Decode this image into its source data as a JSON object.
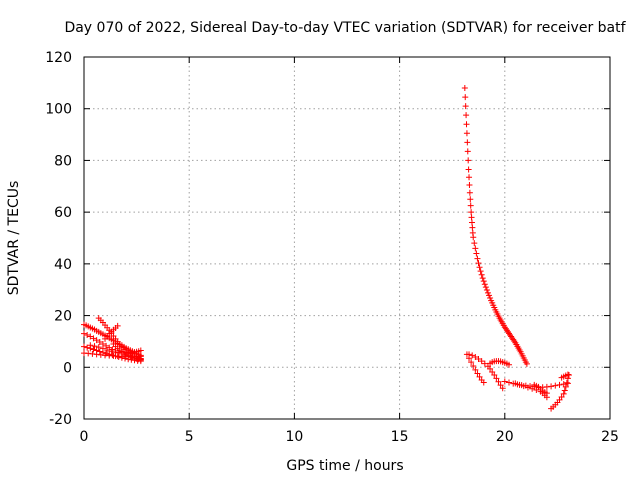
{
  "chart_data": {
    "type": "scatter",
    "title": "Day 070 of 2022, Sidereal Day-to-day VTEC variation (SDTVAR) for receiver batf",
    "xlabel": "GPS time / hours",
    "ylabel": "SDTVAR / TECUs",
    "xlim": [
      0,
      25
    ],
    "ylim": [
      -20,
      120
    ],
    "xticks": [
      0,
      5,
      10,
      15,
      20,
      25
    ],
    "yticks": [
      -20,
      0,
      20,
      40,
      60,
      80,
      100,
      120
    ],
    "xtick_labels": [
      "0",
      "5",
      "10",
      "15",
      "20",
      "25"
    ],
    "ytick_labels": [
      "-20",
      "0",
      "20",
      "40",
      "60",
      "80",
      "100",
      "120"
    ],
    "grid": true,
    "marker": "+",
    "color": "#ff0000",
    "series": [
      {
        "name": "SDTVAR",
        "points": [
          [
            0.0,
            16.5
          ],
          [
            0.1,
            16.2
          ],
          [
            0.2,
            15.8
          ],
          [
            0.3,
            15.4
          ],
          [
            0.4,
            15.0
          ],
          [
            0.5,
            14.6
          ],
          [
            0.6,
            14.1
          ],
          [
            0.7,
            13.7
          ],
          [
            0.8,
            13.2
          ],
          [
            0.9,
            12.8
          ],
          [
            1.0,
            12.3
          ],
          [
            1.1,
            11.8
          ],
          [
            1.2,
            11.3
          ],
          [
            1.3,
            10.8
          ],
          [
            1.4,
            10.3
          ],
          [
            1.5,
            9.8
          ],
          [
            1.6,
            9.2
          ],
          [
            1.7,
            8.7
          ],
          [
            1.8,
            8.1
          ],
          [
            1.9,
            7.6
          ],
          [
            2.0,
            7.0
          ],
          [
            2.1,
            6.4
          ],
          [
            2.2,
            5.9
          ],
          [
            2.3,
            5.3
          ],
          [
            2.4,
            4.8
          ],
          [
            2.5,
            4.3
          ],
          [
            2.6,
            3.8
          ],
          [
            2.7,
            3.4
          ],
          [
            0.0,
            13.0
          ],
          [
            0.15,
            12.5
          ],
          [
            0.3,
            11.9
          ],
          [
            0.45,
            11.2
          ],
          [
            0.6,
            10.5
          ],
          [
            0.75,
            9.8
          ],
          [
            0.9,
            9.0
          ],
          [
            1.05,
            8.3
          ],
          [
            1.2,
            7.6
          ],
          [
            1.35,
            6.9
          ],
          [
            1.5,
            6.3
          ],
          [
            1.65,
            5.7
          ],
          [
            1.8,
            5.2
          ],
          [
            1.95,
            4.7
          ],
          [
            2.1,
            4.3
          ],
          [
            2.25,
            3.9
          ],
          [
            2.4,
            3.5
          ],
          [
            2.55,
            3.1
          ],
          [
            2.7,
            2.8
          ],
          [
            0.0,
            8.0
          ],
          [
            0.15,
            7.6
          ],
          [
            0.3,
            7.3
          ],
          [
            0.45,
            6.9
          ],
          [
            0.6,
            6.5
          ],
          [
            0.75,
            6.1
          ],
          [
            0.9,
            5.8
          ],
          [
            1.05,
            5.4
          ],
          [
            1.2,
            5.0
          ],
          [
            1.35,
            4.7
          ],
          [
            1.5,
            4.3
          ],
          [
            1.65,
            4.0
          ],
          [
            1.8,
            3.7
          ],
          [
            1.95,
            3.4
          ],
          [
            2.1,
            3.1
          ],
          [
            2.25,
            2.9
          ],
          [
            2.4,
            2.7
          ],
          [
            2.55,
            2.5
          ],
          [
            2.7,
            2.4
          ],
          [
            0.0,
            5.5
          ],
          [
            0.2,
            5.4
          ],
          [
            0.4,
            5.2
          ],
          [
            0.6,
            5.0
          ],
          [
            0.8,
            4.8
          ],
          [
            1.0,
            4.6
          ],
          [
            1.2,
            4.5
          ],
          [
            1.4,
            4.4
          ],
          [
            1.6,
            4.3
          ],
          [
            1.8,
            4.2
          ],
          [
            2.0,
            4.2
          ],
          [
            2.2,
            4.1
          ],
          [
            2.4,
            4.1
          ],
          [
            2.6,
            4.1
          ],
          [
            2.7,
            4.2
          ],
          [
            0.7,
            19.0
          ],
          [
            0.8,
            18.2
          ],
          [
            0.9,
            17.3
          ],
          [
            1.0,
            16.3
          ],
          [
            1.1,
            15.3
          ],
          [
            1.2,
            14.3
          ],
          [
            1.3,
            13.2
          ],
          [
            1.4,
            12.1
          ],
          [
            1.5,
            11.0
          ],
          [
            1.6,
            9.9
          ],
          [
            1.7,
            8.8
          ],
          [
            1.8,
            7.8
          ],
          [
            1.9,
            6.8
          ],
          [
            2.0,
            5.9
          ],
          [
            2.1,
            5.1
          ],
          [
            2.2,
            4.5
          ],
          [
            2.3,
            4.0
          ],
          [
            2.4,
            3.6
          ],
          [
            2.5,
            3.3
          ],
          [
            2.6,
            3.1
          ],
          [
            2.7,
            3.0
          ],
          [
            1.0,
            11.0
          ],
          [
            1.1,
            12.1
          ],
          [
            1.2,
            13.0
          ],
          [
            1.3,
            13.8
          ],
          [
            1.4,
            14.5
          ],
          [
            1.5,
            15.2
          ],
          [
            1.6,
            16.0
          ],
          [
            1.4,
            9.0
          ],
          [
            1.5,
            8.0
          ],
          [
            1.6,
            7.2
          ],
          [
            1.7,
            6.6
          ],
          [
            1.8,
            6.1
          ],
          [
            1.9,
            5.8
          ],
          [
            2.0,
            5.6
          ],
          [
            2.1,
            5.5
          ],
          [
            2.2,
            5.5
          ],
          [
            2.3,
            5.6
          ],
          [
            2.4,
            5.8
          ],
          [
            2.5,
            6.0
          ],
          [
            2.6,
            6.2
          ],
          [
            2.7,
            6.5
          ],
          [
            0.3,
            8.5
          ],
          [
            0.5,
            8.2
          ],
          [
            0.7,
            7.8
          ],
          [
            0.9,
            7.3
          ],
          [
            1.1,
            6.7
          ],
          [
            1.3,
            6.2
          ],
          [
            1.5,
            5.6
          ],
          [
            1.8,
            8.5
          ],
          [
            1.9,
            7.9
          ],
          [
            2.0,
            7.4
          ],
          [
            2.1,
            7.0
          ],
          [
            2.2,
            6.6
          ],
          [
            2.3,
            6.2
          ],
          [
            2.4,
            5.8
          ],
          [
            2.5,
            5.4
          ],
          [
            2.6,
            5.0
          ],
          [
            2.7,
            4.6
          ],
          [
            18.1,
            108.0
          ],
          [
            18.12,
            104.5
          ],
          [
            18.14,
            101.0
          ],
          [
            18.16,
            97.5
          ],
          [
            18.18,
            94.0
          ],
          [
            18.2,
            90.5
          ],
          [
            18.22,
            87.0
          ],
          [
            18.24,
            83.5
          ],
          [
            18.26,
            80.0
          ],
          [
            18.28,
            76.5
          ],
          [
            18.3,
            73.5
          ],
          [
            18.32,
            70.5
          ],
          [
            18.34,
            67.5
          ],
          [
            18.36,
            65.0
          ],
          [
            18.38,
            62.5
          ],
          [
            18.4,
            60.0
          ],
          [
            18.42,
            58.0
          ],
          [
            18.44,
            56.0
          ],
          [
            18.46,
            54.0
          ],
          [
            18.48,
            52.0
          ],
          [
            18.5,
            50.3
          ],
          [
            18.55,
            48.0
          ],
          [
            18.6,
            46.0
          ],
          [
            18.65,
            44.0
          ],
          [
            18.7,
            42.0
          ],
          [
            18.75,
            40.3
          ],
          [
            18.8,
            38.7
          ],
          [
            18.85,
            37.2
          ],
          [
            18.9,
            35.8
          ],
          [
            18.95,
            34.5
          ],
          [
            19.0,
            33.3
          ],
          [
            19.05,
            32.1
          ],
          [
            19.1,
            31.0
          ],
          [
            19.15,
            29.9
          ],
          [
            19.2,
            28.8
          ],
          [
            19.25,
            27.8
          ],
          [
            19.3,
            26.8
          ],
          [
            19.35,
            25.8
          ],
          [
            19.4,
            24.9
          ],
          [
            19.45,
            24.0
          ],
          [
            19.5,
            23.1
          ],
          [
            19.55,
            22.2
          ],
          [
            19.6,
            21.4
          ],
          [
            19.65,
            20.6
          ],
          [
            19.7,
            19.8
          ],
          [
            19.75,
            19.0
          ],
          [
            19.8,
            18.3
          ],
          [
            19.85,
            17.6
          ],
          [
            19.9,
            16.9
          ],
          [
            19.95,
            16.2
          ],
          [
            20.0,
            15.5
          ],
          [
            20.05,
            14.9
          ],
          [
            20.1,
            14.3
          ],
          [
            20.15,
            13.7
          ],
          [
            20.2,
            13.1
          ],
          [
            20.25,
            12.5
          ],
          [
            20.3,
            11.9
          ],
          [
            20.35,
            11.3
          ],
          [
            20.4,
            10.7
          ],
          [
            20.45,
            10.1
          ],
          [
            20.5,
            9.5
          ],
          [
            20.55,
            8.8
          ],
          [
            20.6,
            8.1
          ],
          [
            20.65,
            7.4
          ],
          [
            20.7,
            6.7
          ],
          [
            20.75,
            6.0
          ],
          [
            20.8,
            5.2
          ],
          [
            20.85,
            4.4
          ],
          [
            20.9,
            3.6
          ],
          [
            20.95,
            2.8
          ],
          [
            21.0,
            2.0
          ],
          [
            21.05,
            1.3
          ],
          [
            18.2,
            5.0
          ],
          [
            18.3,
            3.5
          ],
          [
            18.4,
            2.0
          ],
          [
            18.5,
            0.5
          ],
          [
            18.6,
            -1.0
          ],
          [
            18.7,
            -2.4
          ],
          [
            18.8,
            -3.7
          ],
          [
            18.9,
            -4.9
          ],
          [
            19.0,
            -5.9
          ],
          [
            18.3,
            5.0
          ],
          [
            18.45,
            4.6
          ],
          [
            18.6,
            4.0
          ],
          [
            18.75,
            3.2
          ],
          [
            18.9,
            2.4
          ],
          [
            19.05,
            1.4
          ],
          [
            19.2,
            0.4
          ],
          [
            19.3,
            -0.6
          ],
          [
            19.4,
            -1.8
          ],
          [
            19.5,
            -3.0
          ],
          [
            19.6,
            -4.3
          ],
          [
            19.7,
            -5.6
          ],
          [
            19.8,
            -6.9
          ],
          [
            19.9,
            -8.1
          ],
          [
            19.3,
            1.5
          ],
          [
            19.4,
            2.0
          ],
          [
            19.5,
            2.3
          ],
          [
            19.6,
            2.4
          ],
          [
            19.7,
            2.4
          ],
          [
            19.8,
            2.3
          ],
          [
            19.9,
            2.0
          ],
          [
            20.0,
            1.7
          ],
          [
            20.1,
            1.4
          ],
          [
            20.2,
            1.0
          ],
          [
            20.0,
            -5.5
          ],
          [
            20.2,
            -5.9
          ],
          [
            20.4,
            -6.3
          ],
          [
            20.6,
            -6.6
          ],
          [
            20.8,
            -6.9
          ],
          [
            21.0,
            -7.1
          ],
          [
            21.2,
            -7.3
          ],
          [
            21.4,
            -7.5
          ],
          [
            21.6,
            -7.6
          ],
          [
            21.8,
            -7.7
          ],
          [
            22.0,
            -7.6
          ],
          [
            22.2,
            -7.4
          ],
          [
            22.4,
            -7.1
          ],
          [
            22.6,
            -6.8
          ],
          [
            22.8,
            -6.5
          ],
          [
            23.0,
            -6.2
          ],
          [
            20.5,
            -6.2
          ],
          [
            20.7,
            -6.8
          ],
          [
            20.9,
            -7.3
          ],
          [
            21.1,
            -7.8
          ],
          [
            21.3,
            -8.3
          ],
          [
            21.5,
            -8.8
          ],
          [
            21.7,
            -9.4
          ],
          [
            21.8,
            -10.0
          ],
          [
            21.9,
            -10.8
          ],
          [
            22.0,
            -11.6
          ],
          [
            21.4,
            -6.8
          ],
          [
            21.5,
            -7.2
          ],
          [
            21.6,
            -7.8
          ],
          [
            21.7,
            -8.4
          ],
          [
            21.8,
            -9.1
          ],
          [
            21.9,
            -9.6
          ],
          [
            22.0,
            -10.0
          ],
          [
            22.2,
            -16.0
          ],
          [
            22.3,
            -15.3
          ],
          [
            22.4,
            -14.5
          ],
          [
            22.5,
            -13.6
          ],
          [
            22.6,
            -12.6
          ],
          [
            22.7,
            -11.5
          ],
          [
            22.8,
            -10.3
          ],
          [
            22.85,
            -9.0
          ],
          [
            22.9,
            -7.6
          ],
          [
            22.95,
            -6.0
          ],
          [
            23.0,
            -4.3
          ],
          [
            23.05,
            -3.0
          ],
          [
            22.7,
            -4.0
          ],
          [
            22.8,
            -3.6
          ],
          [
            22.9,
            -3.2
          ],
          [
            23.0,
            -2.8
          ]
        ]
      }
    ]
  }
}
